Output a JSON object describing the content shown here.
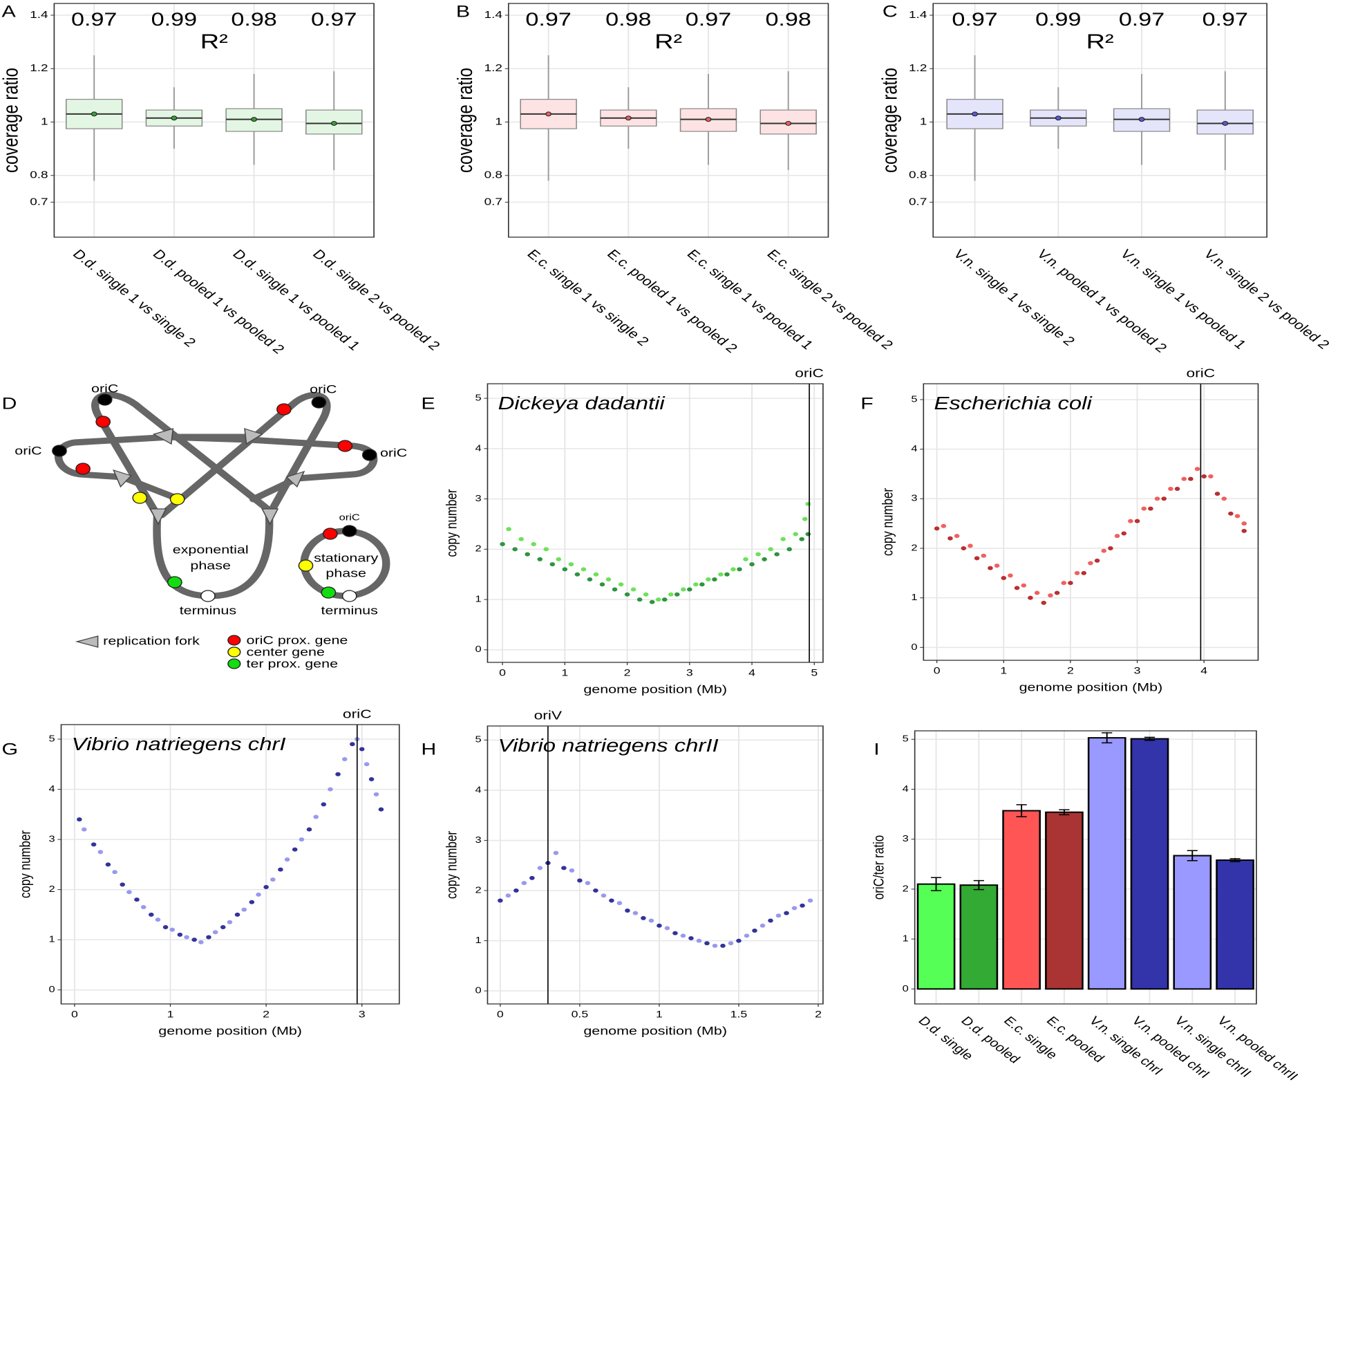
{
  "chart_data": [
    {
      "type": "box",
      "panel": "A",
      "ylabel": "coverage ratio",
      "r2_label": "R²",
      "r2_values": [
        0.97,
        0.99,
        0.98,
        0.97
      ],
      "categories": [
        "D.d. single 1 vs single 2",
        "D.d. pooled 1 vs pooled 2",
        "D.d. single 1 vs pooled 1",
        "D.d. single 2 vs pooled 2"
      ],
      "color": "#3f9a3f",
      "fill": "#e3f6e3",
      "whisker_low": [
        0.78,
        0.9,
        0.84,
        0.82
      ],
      "q1": [
        0.975,
        0.985,
        0.965,
        0.955
      ],
      "median": [
        1.03,
        1.015,
        1.01,
        0.995
      ],
      "q3": [
        1.085,
        1.045,
        1.05,
        1.045
      ],
      "whisker_high": [
        1.25,
        1.13,
        1.18,
        1.19
      ],
      "ylim": [
        0.569,
        1.444
      ],
      "yticks": [
        0.7,
        0.8,
        1,
        1.2,
        1.4
      ],
      "grid": true
    },
    {
      "type": "box",
      "panel": "B",
      "ylabel": "coverage ratio",
      "r2_label": "R²",
      "r2_values": [
        0.97,
        0.98,
        0.97,
        0.98
      ],
      "categories": [
        "E.c. single 1 vs single 2",
        "E.c. pooled 1 vs pooled 2",
        "E.c. single 1 vs pooled 1",
        "E.c. single 2 vs pooled 2"
      ],
      "color": "#e06262",
      "fill": "#fde3e3",
      "whisker_low": [
        0.78,
        0.9,
        0.84,
        0.82
      ],
      "q1": [
        0.975,
        0.985,
        0.965,
        0.955
      ],
      "median": [
        1.03,
        1.015,
        1.01,
        0.995
      ],
      "q3": [
        1.085,
        1.045,
        1.05,
        1.045
      ],
      "whisker_high": [
        1.25,
        1.13,
        1.18,
        1.19
      ],
      "ylim": [
        0.569,
        1.444
      ],
      "yticks": [
        0.7,
        0.8,
        1,
        1.2,
        1.4
      ],
      "grid": true
    },
    {
      "type": "box",
      "panel": "C",
      "ylabel": "coverage ratio",
      "r2_label": "R²",
      "r2_values": [
        0.97,
        0.99,
        0.97,
        0.97
      ],
      "categories": [
        "V.n. single 1 vs single 2",
        "V.n. pooled 1 vs pooled 2",
        "V.n. single 1 vs pooled 1",
        "V.n. single 2 vs pooled 2"
      ],
      "color": "#5a5ad0",
      "fill": "#e4e4fb",
      "whisker_low": [
        0.78,
        0.9,
        0.84,
        0.82
      ],
      "q1": [
        0.975,
        0.985,
        0.965,
        0.955
      ],
      "median": [
        1.03,
        1.015,
        1.01,
        0.995
      ],
      "q3": [
        1.085,
        1.045,
        1.05,
        1.045
      ],
      "whisker_high": [
        1.25,
        1.13,
        1.18,
        1.19
      ],
      "ylim": [
        0.569,
        1.444
      ],
      "yticks": [
        0.7,
        0.8,
        1,
        1.2,
        1.4
      ],
      "grid": true
    },
    {
      "type": "scatter",
      "panel": "E",
      "annotation": "Dickeya dadantii",
      "xlabel": "genome position (Mb)",
      "ylabel": "copy number",
      "xlim": [
        -0.24,
        5.14
      ],
      "xticks": [
        0,
        1,
        2,
        3,
        4,
        5
      ],
      "ylim": [
        -0.25,
        5.29
      ],
      "yticks": [
        0,
        1,
        2,
        3,
        4,
        5
      ],
      "grid": true,
      "vline": {
        "x": 4.92,
        "label": "oriC"
      },
      "series": [
        {
          "color": "#2e9440",
          "x": [
            0,
            0.2,
            0.4,
            0.6,
            0.8,
            1.0,
            1.2,
            1.4,
            1.6,
            1.8,
            2.0,
            2.2,
            2.4,
            2.6,
            2.8,
            3.0,
            3.2,
            3.4,
            3.6,
            3.8,
            4.0,
            4.2,
            4.4,
            4.6,
            4.8,
            4.9
          ],
          "y": [
            2.1,
            2.0,
            1.9,
            1.8,
            1.7,
            1.6,
            1.5,
            1.4,
            1.3,
            1.2,
            1.1,
            1.0,
            0.95,
            1.0,
            1.1,
            1.2,
            1.3,
            1.4,
            1.5,
            1.6,
            1.7,
            1.8,
            1.9,
            2.0,
            2.2,
            2.3
          ]
        },
        {
          "color": "#6ee05a",
          "x": [
            0.1,
            0.3,
            0.5,
            0.7,
            0.9,
            1.1,
            1.3,
            1.5,
            1.7,
            1.9,
            2.1,
            2.3,
            2.5,
            2.7,
            2.9,
            3.1,
            3.3,
            3.5,
            3.7,
            3.9,
            4.1,
            4.3,
            4.5,
            4.7,
            4.85,
            4.9
          ],
          "y": [
            2.4,
            2.2,
            2.1,
            2.0,
            1.8,
            1.7,
            1.6,
            1.5,
            1.4,
            1.3,
            1.2,
            1.1,
            1.0,
            1.1,
            1.2,
            1.3,
            1.4,
            1.5,
            1.6,
            1.8,
            1.9,
            2.0,
            2.2,
            2.3,
            2.6,
            2.9
          ]
        }
      ]
    },
    {
      "type": "scatter",
      "panel": "F",
      "annotation": "Escherichia coli",
      "xlabel": "genome position (Mb)",
      "ylabel": "copy number",
      "xlim": [
        -0.2,
        4.81
      ],
      "xticks": [
        0,
        1,
        2,
        3,
        4
      ],
      "ylim": [
        -0.26,
        5.32
      ],
      "yticks": [
        0,
        1,
        2,
        3,
        4,
        5
      ],
      "grid": true,
      "vline": {
        "x": 3.95,
        "label": "oriC"
      },
      "series": [
        {
          "color": "#b83030",
          "x": [
            0,
            0.2,
            0.4,
            0.6,
            0.8,
            1.0,
            1.2,
            1.4,
            1.6,
            1.8,
            2.0,
            2.2,
            2.4,
            2.6,
            2.8,
            3.0,
            3.2,
            3.4,
            3.6,
            3.8,
            4.0,
            4.2,
            4.4,
            4.6
          ],
          "y": [
            2.4,
            2.2,
            2.0,
            1.8,
            1.6,
            1.4,
            1.2,
            1.0,
            0.9,
            1.1,
            1.3,
            1.5,
            1.75,
            2.0,
            2.3,
            2.55,
            2.8,
            3.0,
            3.2,
            3.4,
            3.45,
            3.1,
            2.7,
            2.35
          ]
        },
        {
          "color": "#f06060",
          "x": [
            0.1,
            0.3,
            0.5,
            0.7,
            0.9,
            1.1,
            1.3,
            1.5,
            1.7,
            1.9,
            2.1,
            2.3,
            2.5,
            2.7,
            2.9,
            3.1,
            3.3,
            3.5,
            3.7,
            3.9,
            4.1,
            4.3,
            4.5,
            4.6
          ],
          "y": [
            2.45,
            2.25,
            2.05,
            1.85,
            1.65,
            1.45,
            1.25,
            1.1,
            1.05,
            1.3,
            1.5,
            1.7,
            1.95,
            2.25,
            2.55,
            2.8,
            3.0,
            3.2,
            3.4,
            3.6,
            3.45,
            3.0,
            2.65,
            2.5
          ]
        }
      ]
    },
    {
      "type": "scatter",
      "panel": "G",
      "annotation": "Vibrio natriegens chrI",
      "xlabel": "genome position (Mb)",
      "ylabel": "copy number",
      "xlim": [
        -0.14,
        3.39
      ],
      "xticks": [
        0,
        1,
        2,
        3
      ],
      "ylim": [
        -0.28,
        5.29
      ],
      "yticks": [
        0,
        1,
        2,
        3,
        4,
        5
      ],
      "grid": true,
      "vline": {
        "x": 2.95,
        "label": "oriC"
      },
      "series": [
        {
          "color": "#333399",
          "x": [
            0.05,
            0.2,
            0.35,
            0.5,
            0.65,
            0.8,
            0.95,
            1.1,
            1.25,
            1.4,
            1.55,
            1.7,
            1.85,
            2.0,
            2.15,
            2.3,
            2.45,
            2.6,
            2.75,
            2.9,
            3.0,
            3.1,
            3.2
          ],
          "y": [
            3.4,
            2.9,
            2.5,
            2.1,
            1.8,
            1.5,
            1.25,
            1.1,
            1.0,
            1.05,
            1.25,
            1.5,
            1.75,
            2.05,
            2.4,
            2.8,
            3.2,
            3.7,
            4.3,
            4.9,
            4.8,
            4.2,
            3.6
          ]
        },
        {
          "color": "#9999ee",
          "x": [
            0.1,
            0.27,
            0.42,
            0.57,
            0.72,
            0.87,
            1.02,
            1.17,
            1.32,
            1.47,
            1.62,
            1.77,
            1.92,
            2.07,
            2.22,
            2.37,
            2.52,
            2.67,
            2.82,
            2.95,
            3.05,
            3.15
          ],
          "y": [
            3.2,
            2.75,
            2.35,
            1.95,
            1.65,
            1.4,
            1.2,
            1.05,
            0.95,
            1.15,
            1.35,
            1.6,
            1.9,
            2.2,
            2.6,
            3.0,
            3.45,
            4.0,
            4.6,
            5.0,
            4.5,
            3.9
          ]
        }
      ]
    },
    {
      "type": "scatter",
      "panel": "H",
      "annotation": "Vibrio natriegens chrII",
      "xlabel": "genome position (Mb)",
      "ylabel": "copy number",
      "xlim": [
        -0.08,
        2.03
      ],
      "xticks": [
        0,
        0.5,
        1,
        1.5,
        2
      ],
      "ylim": [
        -0.26,
        5.28
      ],
      "yticks": [
        0,
        1,
        2,
        3,
        4,
        5
      ],
      "grid": true,
      "vline": {
        "x": 0.3,
        "label": "oriV"
      },
      "series": [
        {
          "color": "#333399",
          "x": [
            0,
            0.1,
            0.2,
            0.3,
            0.4,
            0.5,
            0.6,
            0.7,
            0.8,
            0.9,
            1.0,
            1.1,
            1.2,
            1.3,
            1.4,
            1.5,
            1.6,
            1.7,
            1.8,
            1.9
          ],
          "y": [
            1.8,
            2.0,
            2.25,
            2.55,
            2.45,
            2.2,
            2.0,
            1.8,
            1.6,
            1.45,
            1.3,
            1.15,
            1.05,
            0.95,
            0.9,
            1.0,
            1.2,
            1.4,
            1.55,
            1.7
          ]
        },
        {
          "color": "#9999ee",
          "x": [
            0.05,
            0.15,
            0.25,
            0.35,
            0.45,
            0.55,
            0.65,
            0.75,
            0.85,
            0.95,
            1.05,
            1.15,
            1.25,
            1.35,
            1.45,
            1.55,
            1.65,
            1.75,
            1.85,
            1.95
          ],
          "y": [
            1.9,
            2.15,
            2.45,
            2.75,
            2.4,
            2.15,
            1.9,
            1.75,
            1.55,
            1.4,
            1.25,
            1.1,
            1.0,
            0.9,
            0.95,
            1.1,
            1.3,
            1.5,
            1.65,
            1.8
          ]
        }
      ]
    },
    {
      "type": "bar",
      "panel": "I",
      "ylabel": "oriC/ter ratio",
      "categories": [
        "D.d. single",
        "D.d. pooled",
        "E.c. single",
        "E.c. pooled",
        "V.n. single chrI",
        "V.n. pooled chrI",
        "V.n. single chrII",
        "V.n. pooled chrII"
      ],
      "values": [
        2.1,
        2.08,
        3.57,
        3.54,
        5.03,
        5.01,
        2.67,
        2.58
      ],
      "errors": [
        0.13,
        0.09,
        0.12,
        0.05,
        0.1,
        0.03,
        0.1,
        0.03
      ],
      "colors": [
        "#55ff55",
        "#33aa33",
        "#ff5555",
        "#aa3333",
        "#9999ff",
        "#3333aa",
        "#9999ff",
        "#3333aa"
      ],
      "ylim": [
        -0.3,
        5.17
      ],
      "yticks": [
        0,
        1,
        2,
        3,
        4,
        5
      ],
      "grid": true
    }
  ],
  "diagram": {
    "panel": "D",
    "origins": [
      "oriC",
      "oriC",
      "oriC",
      "oriC"
    ],
    "exponential": [
      "exponential",
      "phase"
    ],
    "terminus_exp": "terminus",
    "stationary_ori": "oriC",
    "stationary": [
      "stationary",
      "phase"
    ],
    "terminus_stat": "terminus",
    "legend": [
      "replication fork",
      "oriC prox. gene",
      "center gene",
      "ter prox. gene"
    ]
  }
}
